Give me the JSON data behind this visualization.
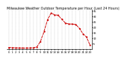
{
  "title": "Milwaukee Weather Outdoor Temperature per Hour (Last 24 Hours)",
  "hours": [
    0,
    1,
    2,
    3,
    4,
    5,
    6,
    7,
    8,
    9,
    10,
    11,
    12,
    13,
    14,
    15,
    16,
    17,
    18,
    19,
    20,
    21,
    22,
    23
  ],
  "temps": [
    1.5,
    1.3,
    1.1,
    1.0,
    0.9,
    0.9,
    1.0,
    1.2,
    2.0,
    7.0,
    16.0,
    27.0,
    33.0,
    31.5,
    31.0,
    27.5,
    24.0,
    23.0,
    23.0,
    22.5,
    19.0,
    14.0,
    11.0,
    3.5
  ],
  "line_color": "#cc0000",
  "bg_color": "#ffffff",
  "plot_bg": "#ffffff",
  "grid_color": "#999999",
  "ylim": [
    0,
    36
  ],
  "yticks": [
    5,
    10,
    15,
    20,
    25,
    30,
    35
  ],
  "ytick_labels": [
    "5",
    "10",
    "15",
    "20",
    "25",
    "30",
    "35"
  ],
  "title_fontsize": 3.5,
  "tick_labelsize": 2.8
}
